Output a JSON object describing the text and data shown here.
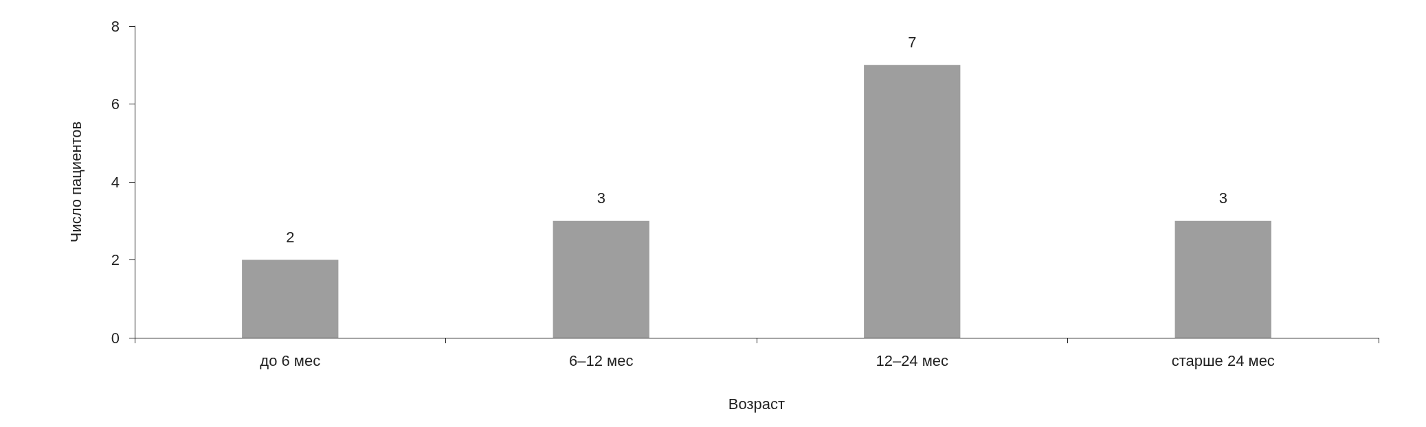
{
  "chart_data": {
    "type": "bar",
    "xlabel": "Возраст",
    "ylabel": "Число пациентов",
    "categories": [
      "до 6 мес",
      "6–12 мес",
      "12–24 мес",
      "старше 24 мес"
    ],
    "values": [
      2,
      3,
      7,
      3
    ],
    "color": "#9e9e9e",
    "ylim": [
      0,
      8
    ],
    "yticks": [
      0,
      2,
      4,
      6,
      8
    ],
    "grid": false,
    "data_labels": true
  }
}
